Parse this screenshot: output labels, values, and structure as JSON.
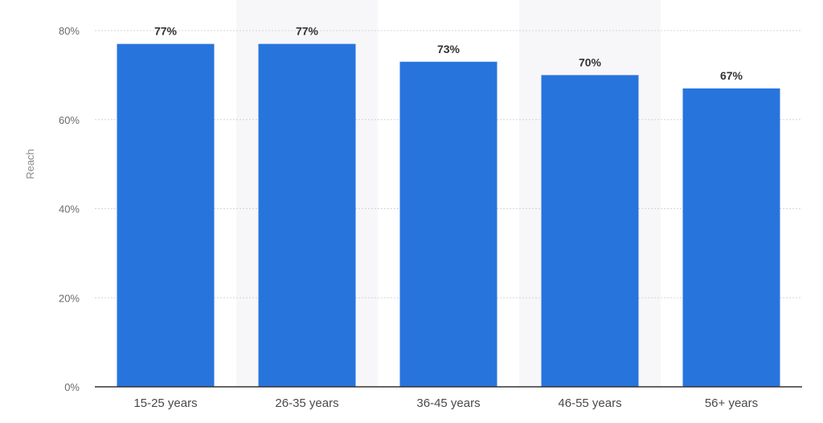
{
  "chart_data": {
    "type": "bar",
    "categories": [
      "15-25 years",
      "26-35 years",
      "36-45 years",
      "46-55 years",
      "56+ years"
    ],
    "values": [
      77,
      77,
      73,
      70,
      67
    ],
    "value_labels": [
      "77%",
      "77%",
      "73%",
      "70%",
      "67%"
    ],
    "title": "",
    "xlabel": "",
    "ylabel": "Reach",
    "ylim": [
      0,
      80
    ],
    "yticks": [
      0,
      20,
      40,
      60,
      80
    ],
    "ytick_labels": [
      "0%",
      "20%",
      "40%",
      "60%",
      "80%"
    ],
    "grid": true,
    "legend": "none",
    "bar_color": "#2874dd",
    "grid_color": "#d4d4d4",
    "axis_color": "#333333",
    "band_color": "#f7f7f9"
  }
}
